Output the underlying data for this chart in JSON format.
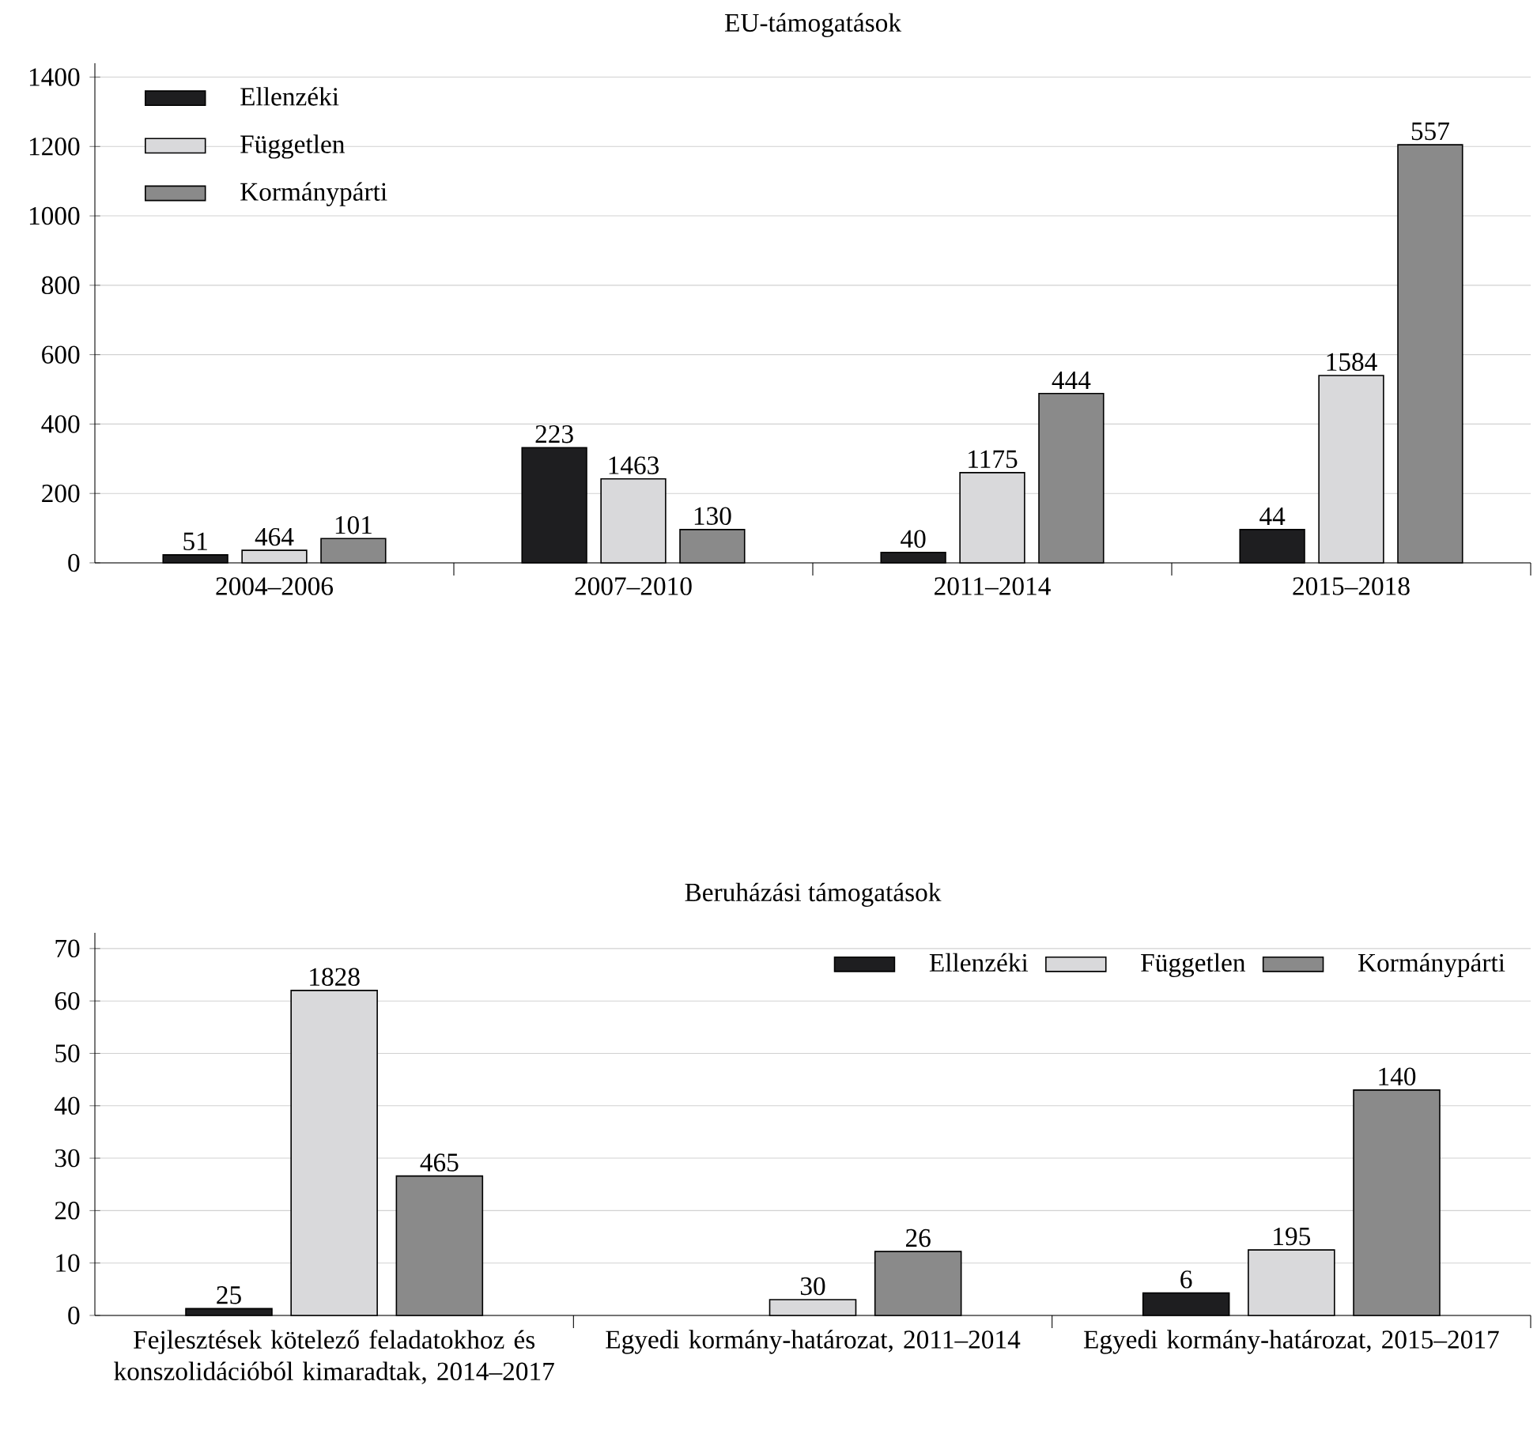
{
  "chart_data": [
    {
      "type": "bar",
      "title": "EU-támogatások",
      "categories": [
        "2004–2006",
        "2007–2010",
        "2011–2014",
        "2015–2018"
      ],
      "ylim": [
        0,
        1440
      ],
      "yticks": [
        0,
        200,
        400,
        600,
        800,
        1000,
        1200,
        1400
      ],
      "grid": "y",
      "legend": "top left",
      "series": [
        {
          "name": "Ellenzéki",
          "color": "#1e1e20",
          "values": [
            23,
            332,
            30,
            96
          ]
        },
        {
          "name": "Független",
          "color": "#d9d9db",
          "values": [
            36,
            242,
            260,
            540
          ]
        },
        {
          "name": "Kormánypárti",
          "color": "#8a8a8a",
          "values": [
            70,
            96,
            488,
            1205
          ]
        }
      ],
      "annotations": [
        "51",
        "223",
        "40",
        "44",
        "464",
        "1463",
        "1175",
        "1584",
        "101",
        "130",
        "444",
        "557"
      ]
    },
    {
      "type": "bar",
      "title": "Beruházási támogatások",
      "categories": [
        "Fejlesztések kötelező feladatokhoz és konszolidációból kimaradtak, 2014–2017",
        "Egyedi kormány-határozat, 2011–2014",
        "Egyedi kormány-határozat, 2015–2017"
      ],
      "ylim": [
        0,
        73
      ],
      "yticks": [
        0,
        10,
        20,
        30,
        40,
        50,
        60,
        70
      ],
      "grid": "y",
      "legend": "top right",
      "series": [
        {
          "name": "Ellenzéki",
          "color": "#1e1e20",
          "values": [
            1.3,
            null,
            4.3
          ]
        },
        {
          "name": "Független",
          "color": "#d9d9db",
          "values": [
            62,
            3.0,
            12.5
          ]
        },
        {
          "name": "Kormánypárti",
          "color": "#8a8a8a",
          "values": [
            26.6,
            12.2,
            43.0
          ]
        }
      ],
      "annotations": [
        "25",
        "6",
        "1828",
        "30",
        "195",
        "465",
        "26",
        "140"
      ]
    }
  ]
}
